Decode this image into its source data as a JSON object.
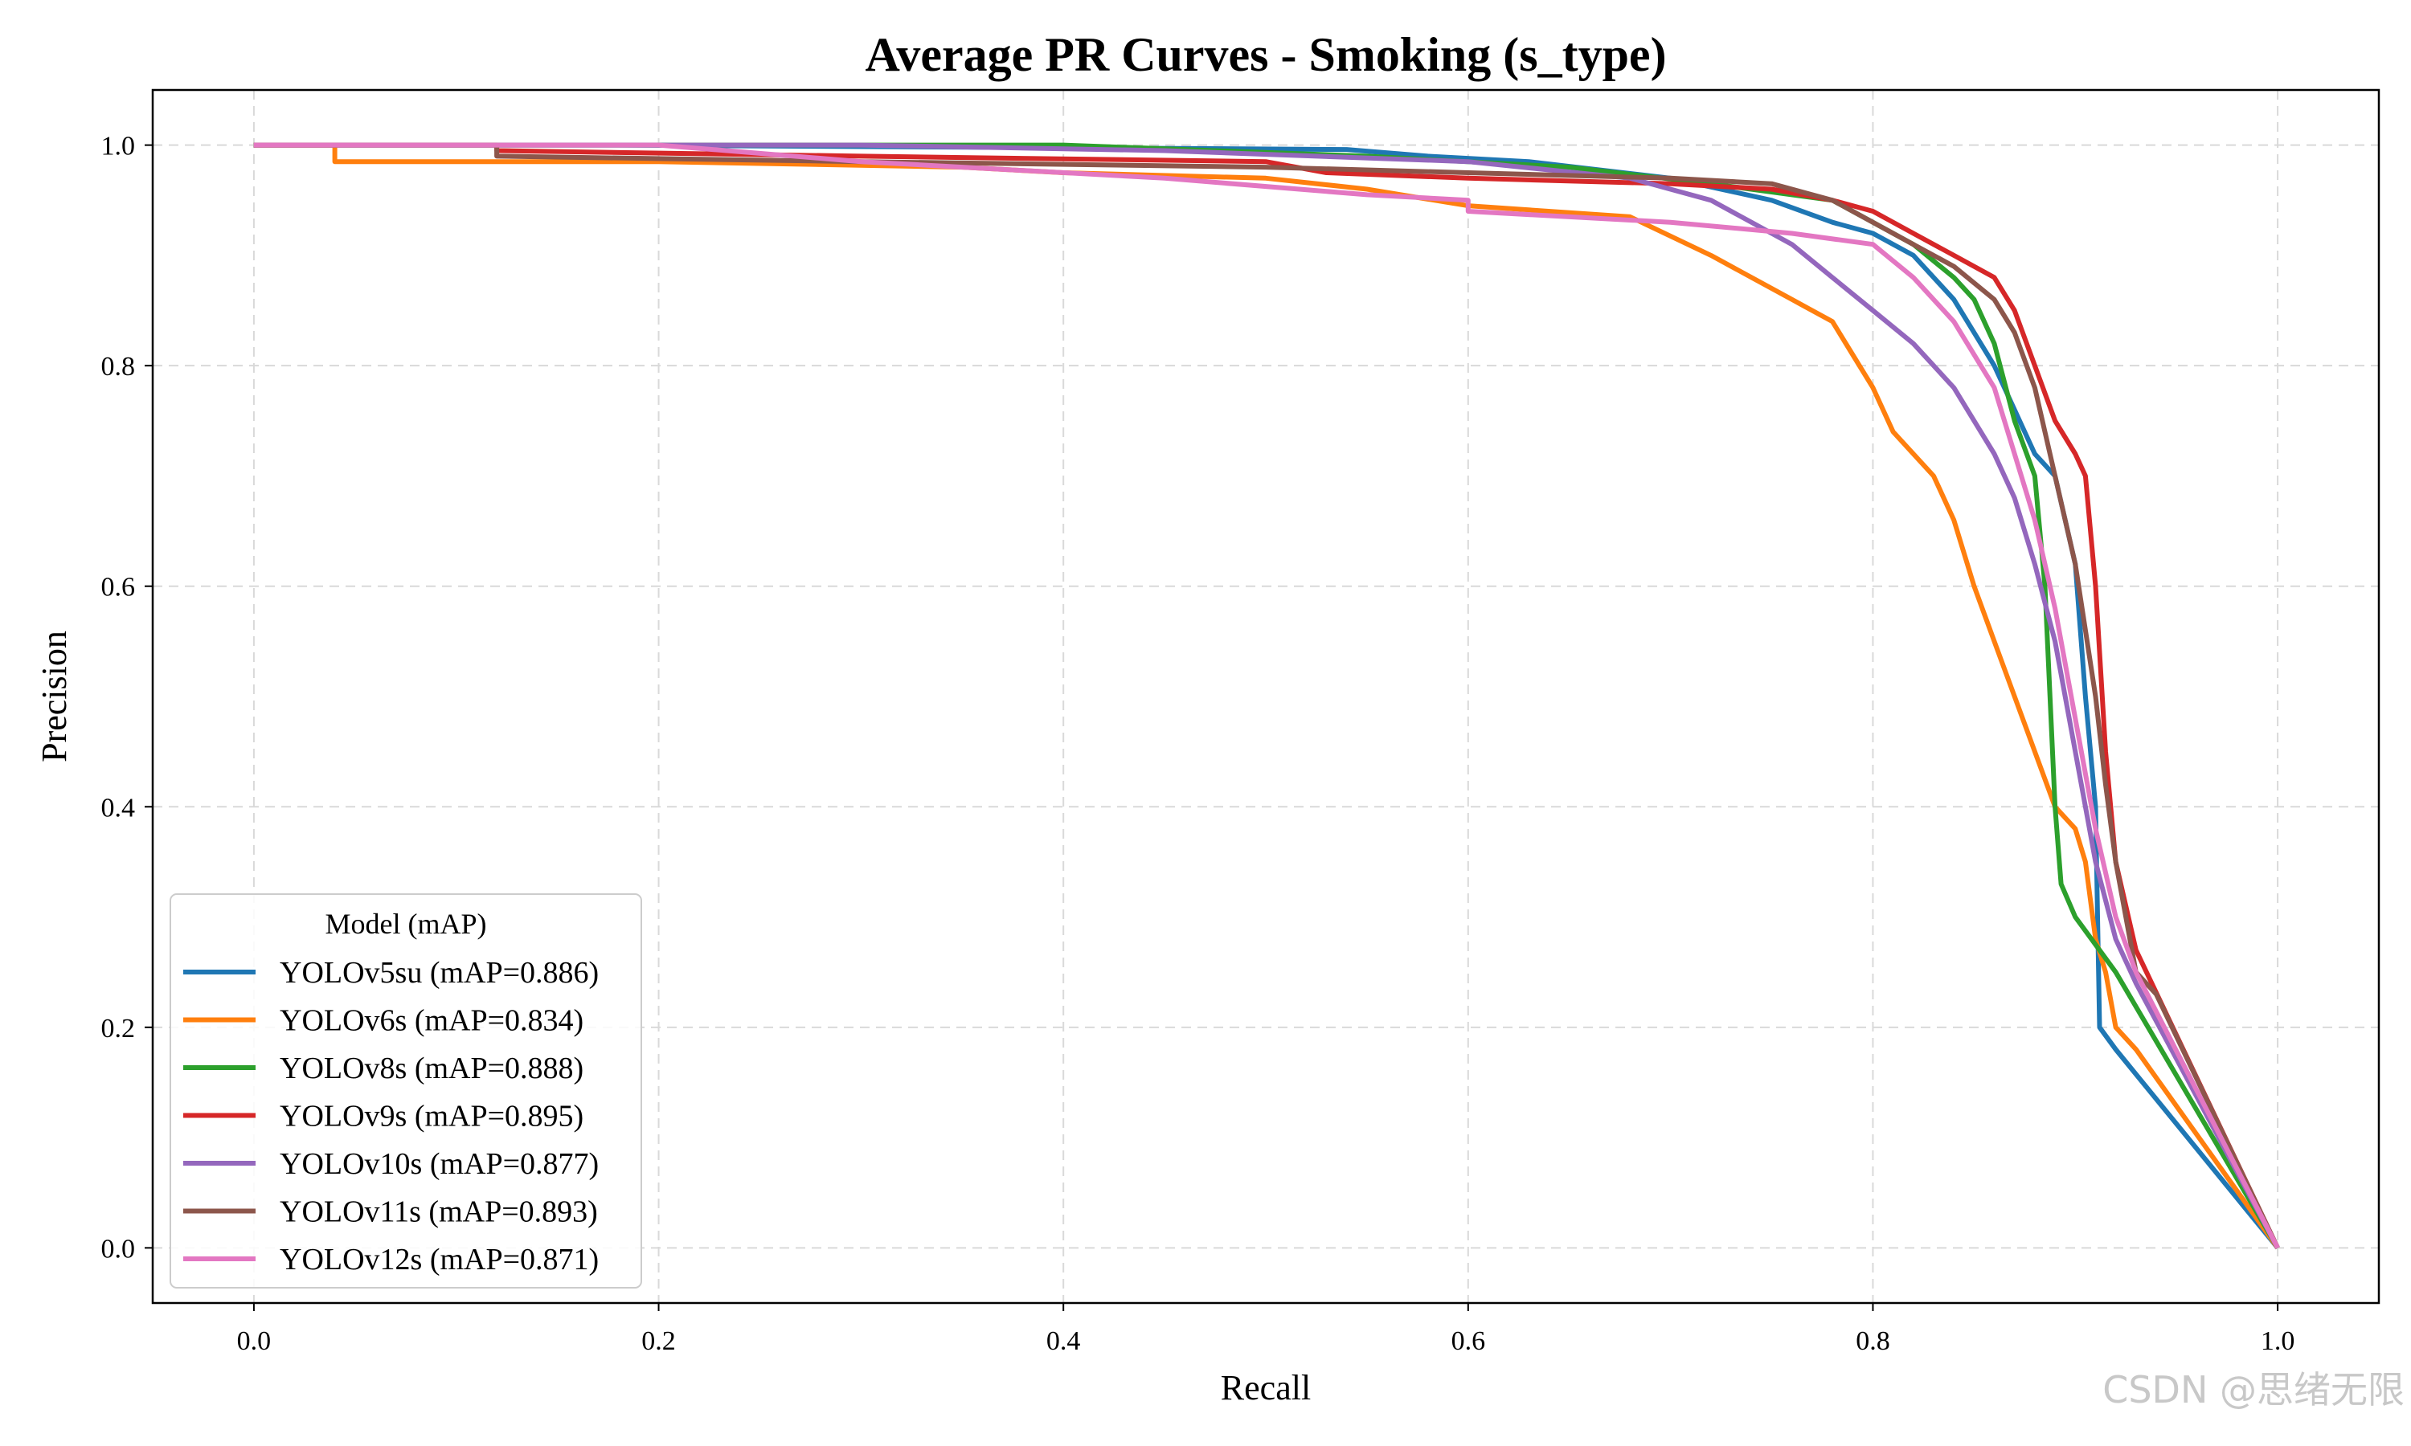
{
  "chart_data": {
    "type": "line",
    "title": "Average PR Curves - Smoking (s_type)",
    "xlabel": "Recall",
    "ylabel": "Precision",
    "xlim": [
      -0.05,
      1.05
    ],
    "ylim": [
      -0.05,
      1.05
    ],
    "xticks": [
      0.0,
      0.2,
      0.4,
      0.6,
      0.8,
      1.0
    ],
    "yticks": [
      0.0,
      0.2,
      0.4,
      0.6,
      0.8,
      1.0
    ],
    "xtick_labels": [
      "0.0",
      "0.2",
      "0.4",
      "0.6",
      "0.8",
      "1.0"
    ],
    "ytick_labels": [
      "0.0",
      "0.2",
      "0.4",
      "0.6",
      "0.8",
      "1.0"
    ],
    "grid": true,
    "legend": {
      "title": "Model (mAP)",
      "placement": "lower-left"
    },
    "series": [
      {
        "name": "YOLOv5su (mAP=0.886)",
        "color": "#1f77b4",
        "points": [
          [
            0,
            1
          ],
          [
            0.18,
            1
          ],
          [
            0.54,
            0.996
          ],
          [
            0.58,
            0.99
          ],
          [
            0.63,
            0.985
          ],
          [
            0.7,
            0.97
          ],
          [
            0.75,
            0.95
          ],
          [
            0.78,
            0.93
          ],
          [
            0.8,
            0.92
          ],
          [
            0.82,
            0.9
          ],
          [
            0.84,
            0.86
          ],
          [
            0.86,
            0.8
          ],
          [
            0.87,
            0.76
          ],
          [
            0.88,
            0.72
          ],
          [
            0.89,
            0.7
          ],
          [
            0.9,
            0.62
          ],
          [
            0.905,
            0.5
          ],
          [
            0.91,
            0.4
          ],
          [
            0.912,
            0.2
          ],
          [
            0.92,
            0.18
          ],
          [
            1,
            0
          ]
        ]
      },
      {
        "name": "YOLOv6s (mAP=0.834)",
        "color": "#ff7f0e",
        "points": [
          [
            0,
            1
          ],
          [
            0.04,
            1
          ],
          [
            0.04,
            0.985
          ],
          [
            0.2,
            0.985
          ],
          [
            0.35,
            0.98
          ],
          [
            0.4,
            0.975
          ],
          [
            0.5,
            0.97
          ],
          [
            0.55,
            0.96
          ],
          [
            0.6,
            0.945
          ],
          [
            0.68,
            0.935
          ],
          [
            0.72,
            0.9
          ],
          [
            0.74,
            0.88
          ],
          [
            0.76,
            0.86
          ],
          [
            0.78,
            0.84
          ],
          [
            0.79,
            0.81
          ],
          [
            0.8,
            0.78
          ],
          [
            0.81,
            0.74
          ],
          [
            0.83,
            0.7
          ],
          [
            0.84,
            0.66
          ],
          [
            0.85,
            0.6
          ],
          [
            0.86,
            0.55
          ],
          [
            0.87,
            0.5
          ],
          [
            0.88,
            0.45
          ],
          [
            0.89,
            0.4
          ],
          [
            0.9,
            0.38
          ],
          [
            0.905,
            0.35
          ],
          [
            0.91,
            0.28
          ],
          [
            0.915,
            0.25
          ],
          [
            0.92,
            0.2
          ],
          [
            0.93,
            0.18
          ],
          [
            1,
            0
          ]
        ]
      },
      {
        "name": "YOLOv8s (mAP=0.888)",
        "color": "#2ca02c",
        "points": [
          [
            0,
            1
          ],
          [
            0.27,
            1
          ],
          [
            0.4,
            1
          ],
          [
            0.55,
            0.99
          ],
          [
            0.65,
            0.98
          ],
          [
            0.72,
            0.965
          ],
          [
            0.78,
            0.95
          ],
          [
            0.8,
            0.93
          ],
          [
            0.82,
            0.91
          ],
          [
            0.84,
            0.88
          ],
          [
            0.85,
            0.86
          ],
          [
            0.86,
            0.82
          ],
          [
            0.87,
            0.75
          ],
          [
            0.88,
            0.7
          ],
          [
            0.885,
            0.6
          ],
          [
            0.89,
            0.4
          ],
          [
            0.893,
            0.33
          ],
          [
            0.9,
            0.3
          ],
          [
            0.92,
            0.25
          ],
          [
            1,
            0
          ]
        ]
      },
      {
        "name": "YOLOv9s (mAP=0.895)",
        "color": "#d62728",
        "points": [
          [
            0,
            1
          ],
          [
            0.12,
            1
          ],
          [
            0.12,
            0.995
          ],
          [
            0.3,
            0.99
          ],
          [
            0.5,
            0.985
          ],
          [
            0.53,
            0.975
          ],
          [
            0.6,
            0.97
          ],
          [
            0.7,
            0.965
          ],
          [
            0.75,
            0.96
          ],
          [
            0.78,
            0.95
          ],
          [
            0.8,
            0.94
          ],
          [
            0.82,
            0.92
          ],
          [
            0.84,
            0.9
          ],
          [
            0.86,
            0.88
          ],
          [
            0.87,
            0.85
          ],
          [
            0.88,
            0.8
          ],
          [
            0.89,
            0.75
          ],
          [
            0.9,
            0.72
          ],
          [
            0.905,
            0.7
          ],
          [
            0.91,
            0.6
          ],
          [
            0.915,
            0.45
          ],
          [
            0.92,
            0.35
          ],
          [
            0.93,
            0.27
          ],
          [
            1,
            0
          ]
        ]
      },
      {
        "name": "YOLOv10s (mAP=0.877)",
        "color": "#9467bd",
        "points": [
          [
            0,
            1
          ],
          [
            0.3,
            1
          ],
          [
            0.45,
            0.995
          ],
          [
            0.6,
            0.985
          ],
          [
            0.68,
            0.97
          ],
          [
            0.72,
            0.95
          ],
          [
            0.74,
            0.93
          ],
          [
            0.76,
            0.91
          ],
          [
            0.78,
            0.88
          ],
          [
            0.8,
            0.85
          ],
          [
            0.82,
            0.82
          ],
          [
            0.84,
            0.78
          ],
          [
            0.86,
            0.72
          ],
          [
            0.87,
            0.68
          ],
          [
            0.88,
            0.62
          ],
          [
            0.89,
            0.55
          ],
          [
            0.9,
            0.45
          ],
          [
            0.91,
            0.35
          ],
          [
            0.92,
            0.28
          ],
          [
            0.93,
            0.24
          ],
          [
            1,
            0
          ]
        ]
      },
      {
        "name": "YOLOv11s (mAP=0.893)",
        "color": "#8c564b",
        "points": [
          [
            0,
            1
          ],
          [
            0.12,
            1
          ],
          [
            0.12,
            0.99
          ],
          [
            0.3,
            0.985
          ],
          [
            0.5,
            0.98
          ],
          [
            0.6,
            0.975
          ],
          [
            0.7,
            0.97
          ],
          [
            0.75,
            0.965
          ],
          [
            0.78,
            0.95
          ],
          [
            0.8,
            0.93
          ],
          [
            0.82,
            0.91
          ],
          [
            0.84,
            0.89
          ],
          [
            0.86,
            0.86
          ],
          [
            0.87,
            0.83
          ],
          [
            0.88,
            0.78
          ],
          [
            0.89,
            0.7
          ],
          [
            0.9,
            0.62
          ],
          [
            0.905,
            0.56
          ],
          [
            0.91,
            0.5
          ],
          [
            0.915,
            0.42
          ],
          [
            0.92,
            0.35
          ],
          [
            0.93,
            0.25
          ],
          [
            0.94,
            0.23
          ],
          [
            1,
            0
          ]
        ]
      },
      {
        "name": "YOLOv12s (mAP=0.871)",
        "color": "#e377c2",
        "points": [
          [
            0,
            1
          ],
          [
            0.2,
            1
          ],
          [
            0.3,
            0.985
          ],
          [
            0.45,
            0.97
          ],
          [
            0.55,
            0.955
          ],
          [
            0.6,
            0.95
          ],
          [
            0.6,
            0.94
          ],
          [
            0.7,
            0.93
          ],
          [
            0.76,
            0.92
          ],
          [
            0.8,
            0.91
          ],
          [
            0.82,
            0.88
          ],
          [
            0.84,
            0.84
          ],
          [
            0.86,
            0.78
          ],
          [
            0.87,
            0.72
          ],
          [
            0.88,
            0.66
          ],
          [
            0.89,
            0.58
          ],
          [
            0.9,
            0.48
          ],
          [
            0.91,
            0.38
          ],
          [
            0.92,
            0.3
          ],
          [
            0.93,
            0.25
          ],
          [
            1,
            0
          ]
        ]
      }
    ]
  },
  "watermark": "CSDN @思绪无限"
}
